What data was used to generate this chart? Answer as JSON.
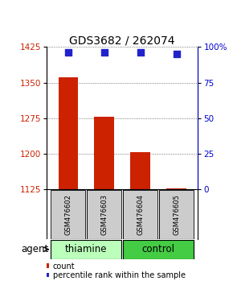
{
  "title": "GDS3682 / 262074",
  "samples": [
    "GSM476602",
    "GSM476603",
    "GSM476604",
    "GSM476605"
  ],
  "bar_values": [
    1362,
    1278,
    1203,
    1128
  ],
  "percentile_values": [
    96,
    96,
    96,
    95
  ],
  "ylim_left": [
    1125,
    1425
  ],
  "yticks_left": [
    1125,
    1200,
    1275,
    1350,
    1425
  ],
  "ylim_right": [
    0,
    100
  ],
  "yticks_right": [
    0,
    25,
    50,
    75,
    100
  ],
  "ytick_labels_right": [
    "0",
    "25",
    "50",
    "75",
    "100%"
  ],
  "bar_color": "#cc2200",
  "dot_color": "#2222cc",
  "groups": [
    {
      "label": "thiamine",
      "samples": [
        0,
        1
      ],
      "color": "#bbffbb"
    },
    {
      "label": "control",
      "samples": [
        2,
        3
      ],
      "color": "#44cc44"
    }
  ],
  "agent_label": "agent",
  "legend_count_label": "count",
  "legend_pct_label": "percentile rank within the sample",
  "bar_width": 0.55,
  "dot_size": 35,
  "grid_color": "#555555",
  "title_fontsize": 10,
  "tick_fontsize": 7.5,
  "label_fontsize": 8.5,
  "axis_left_color": "#cc2200",
  "axis_right_color": "#0000cc",
  "bg_xticklabel": "#cccccc",
  "sample_label_fontsize": 6.0,
  "group_fontsize": 8.5
}
